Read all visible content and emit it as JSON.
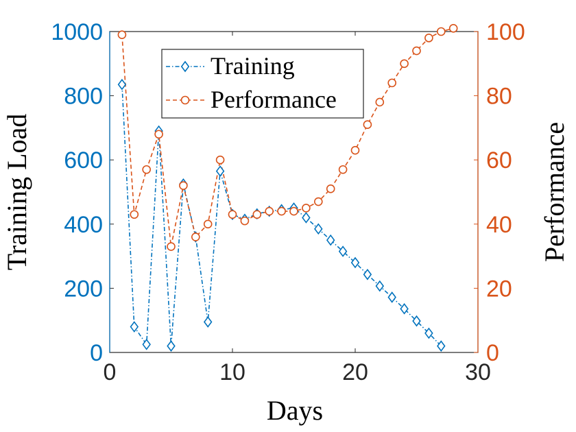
{
  "chart_data": {
    "type": "line",
    "xlabel": "Days",
    "ylabel_left": "Training Load",
    "ylabel_right": "Performance",
    "xlim": [
      0,
      30
    ],
    "ylim_left": [
      0,
      1000
    ],
    "ylim_right": [
      0,
      100
    ],
    "xticks": [
      "0",
      "10",
      "20",
      "30"
    ],
    "yticks_left": [
      "0",
      "200",
      "400",
      "600",
      "800",
      "1000"
    ],
    "yticks_right": [
      "0",
      "20",
      "40",
      "60",
      "80",
      "100"
    ],
    "legend_position": "top-left",
    "colors": {
      "training": "#0072BD",
      "performance": "#D95319",
      "axis": "#262626"
    },
    "series": [
      {
        "name": "Training",
        "axis": "left",
        "marker": "diamond",
        "line_style": "dash-dot",
        "x": [
          1,
          2,
          3,
          4,
          5,
          6,
          7,
          8,
          9,
          10,
          11,
          12,
          13,
          14,
          15,
          16,
          17,
          18,
          19,
          20,
          21,
          22,
          23,
          24,
          25,
          26,
          27
        ],
        "values": [
          835,
          80,
          25,
          690,
          20,
          525,
          360,
          95,
          565,
          430,
          415,
          432,
          440,
          445,
          450,
          420,
          385,
          350,
          315,
          280,
          243,
          207,
          172,
          136,
          98,
          60,
          20
        ]
      },
      {
        "name": "Performance",
        "axis": "right",
        "marker": "circle",
        "line_style": "dashed",
        "x": [
          1,
          2,
          3,
          4,
          5,
          6,
          7,
          8,
          9,
          10,
          11,
          12,
          13,
          14,
          15,
          16,
          17,
          18,
          19,
          20,
          21,
          22,
          23,
          24,
          25,
          26,
          27,
          28
        ],
        "values": [
          99,
          43,
          57,
          68,
          33,
          52,
          36,
          40,
          60,
          43,
          41,
          43,
          44,
          44,
          44,
          45,
          47,
          51,
          57,
          63,
          71,
          78,
          84,
          90,
          94,
          98,
          100,
          101
        ]
      }
    ]
  }
}
